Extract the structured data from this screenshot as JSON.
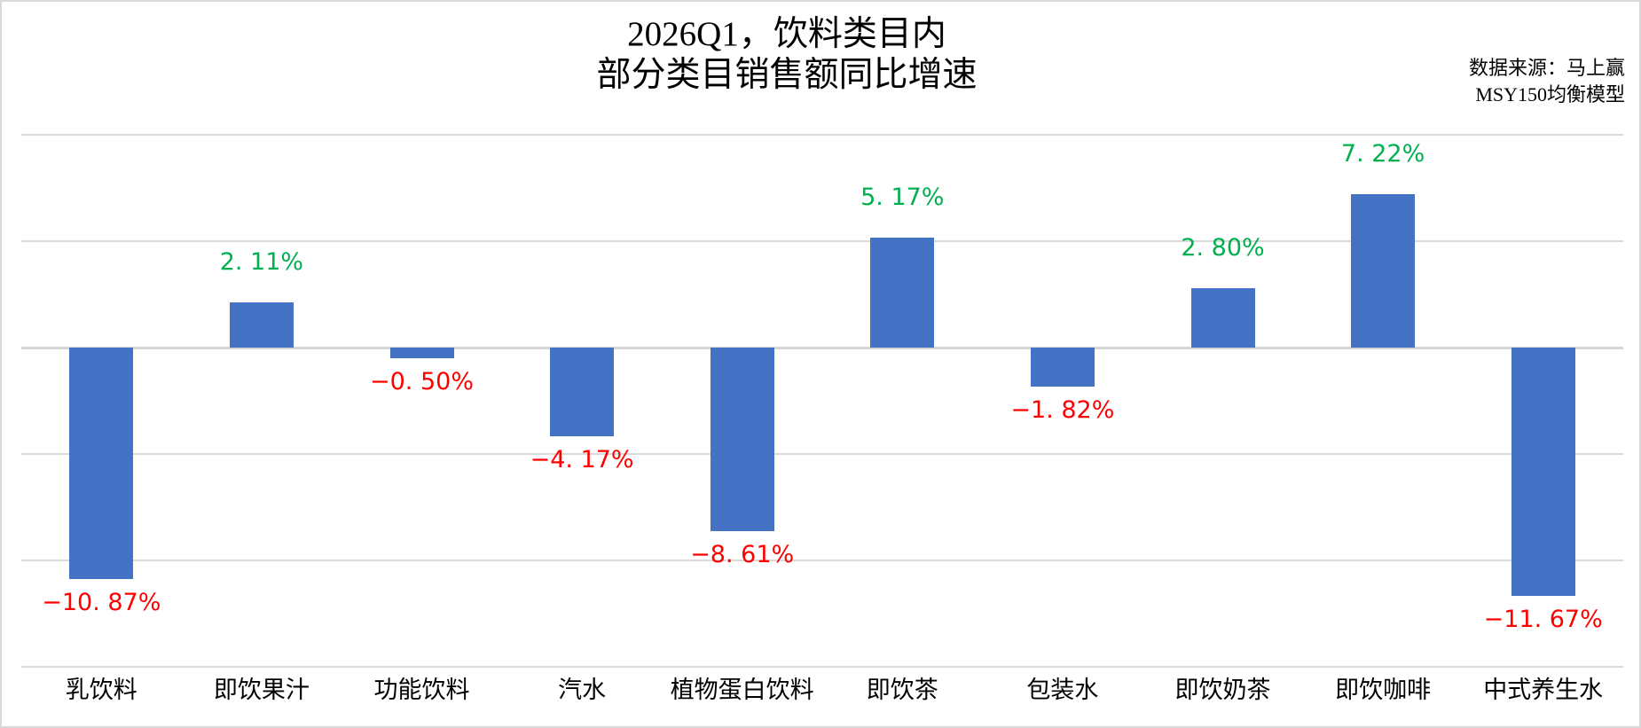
{
  "title": {
    "line1": "2026Q1，饮料类目内",
    "line2": "部分类目销售额同比增速"
  },
  "source": {
    "line1": "数据来源：马上赢",
    "line2": "MSY150均衡模型"
  },
  "chart_data": {
    "type": "bar",
    "title": "2026Q1，饮料类目内 部分类目销售额同比增速",
    "categories": [
      "乳饮料",
      "即饮果汁",
      "功能饮料",
      "汽水",
      "植物蛋白饮料",
      "即饮茶",
      "包装水",
      "即饮奶茶",
      "即饮咖啡",
      "中式养生水"
    ],
    "values": [
      -10.87,
      2.11,
      -0.5,
      -4.17,
      -8.61,
      5.17,
      -1.82,
      2.8,
      7.22,
      -11.67
    ],
    "labels": [
      "−10. 87%",
      "2. 11%",
      "−0. 50%",
      "−4. 17%",
      "−8. 61%",
      "5. 17%",
      "−1. 82%",
      "2. 80%",
      "7. 22%",
      "−11. 67%"
    ],
    "xlabel": "",
    "ylabel": "",
    "ylim": [
      -15,
      10
    ],
    "major_unit": 5,
    "grid": true,
    "legend_position": "none",
    "colors": {
      "bar": "#4472C4",
      "positive_label": "#00B050",
      "negative_label": "#FF0000",
      "gridline": "#DADADA",
      "axis_line": "#D5D5D5"
    }
  }
}
